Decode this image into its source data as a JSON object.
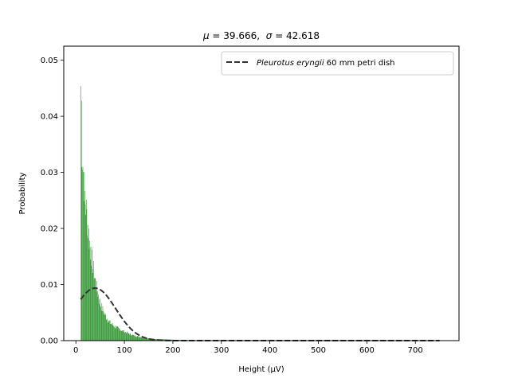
{
  "chart_data": {
    "type": "bar",
    "title": {
      "mu_symbol": "μ",
      "mu_text": " = 39.666,  ",
      "sigma_symbol": "σ",
      "sigma_text": " = 42.618"
    },
    "xlabel": "Height (μV)",
    "ylabel": "Probability",
    "xlim": [
      -25,
      790
    ],
    "ylim": [
      0,
      0.0525
    ],
    "xticks": [
      0,
      100,
      200,
      300,
      400,
      500,
      600,
      700
    ],
    "yticks": [
      0.0,
      0.01,
      0.02,
      0.03,
      0.04,
      0.05
    ],
    "ytick_labels": [
      "0.00",
      "0.01",
      "0.02",
      "0.03",
      "0.04",
      "0.05"
    ],
    "grid": false,
    "legend": {
      "placement": "top-right",
      "entry_italic": "Pleurotus eryngii",
      "entry_rest": " 60 mm petri dish"
    },
    "histogram": {
      "color": "#3a9a3a",
      "bin_width": 1,
      "profile": [
        [
          10,
          0.0455
        ],
        [
          11,
          0.042
        ],
        [
          12,
          0.035
        ],
        [
          13,
          0.033
        ],
        [
          15,
          0.03
        ],
        [
          17,
          0.027
        ],
        [
          20,
          0.024
        ],
        [
          23,
          0.0215
        ],
        [
          26,
          0.019
        ],
        [
          30,
          0.016
        ],
        [
          35,
          0.013
        ],
        [
          40,
          0.0105
        ],
        [
          45,
          0.0085
        ],
        [
          50,
          0.0065
        ],
        [
          55,
          0.0055
        ],
        [
          60,
          0.0045
        ],
        [
          65,
          0.0038
        ],
        [
          70,
          0.0032
        ],
        [
          80,
          0.0025
        ],
        [
          90,
          0.002
        ],
        [
          100,
          0.0016
        ],
        [
          110,
          0.0012
        ],
        [
          120,
          0.0009
        ],
        [
          140,
          0.0005
        ],
        [
          160,
          0.0003
        ],
        [
          200,
          0.00015
        ],
        [
          250,
          5e-05
        ],
        [
          300,
          2e-05
        ],
        [
          750,
          0.0
        ]
      ]
    },
    "series": [
      {
        "name": "Pleurotus eryngii 60 mm petri dish",
        "style": "dashed",
        "color": "#333333",
        "mu": 39.666,
        "sigma": 42.618,
        "x_range": [
          10,
          750
        ]
      }
    ]
  }
}
